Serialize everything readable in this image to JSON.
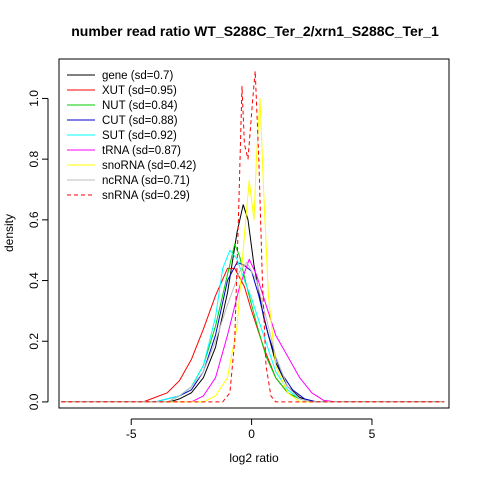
{
  "chart_data": {
    "type": "line",
    "title": "number read ratio WT_S288C_Ter_2/xrn1_S288C_Ter_1",
    "xlabel": "log2 ratio",
    "ylabel": "density",
    "xlim": [
      -8,
      8.2
    ],
    "ylim": [
      -0.02,
      1.13
    ],
    "x_ticks": [
      -5,
      0,
      5
    ],
    "x_tick_labels": [
      "-5",
      "0",
      "5"
    ],
    "y_ticks": [
      0.0,
      0.2,
      0.4,
      0.6,
      0.8,
      1.0
    ],
    "y_tick_labels": [
      "0.0",
      "0.2",
      "0.4",
      "0.6",
      "0.8",
      "1.0"
    ],
    "grid": false,
    "legend_position": "top-left",
    "series": [
      {
        "name": "gene (sd=0.7)",
        "color": "#000000",
        "dash": false,
        "points": [
          [
            -7.9,
            0
          ],
          [
            -3.4,
            0
          ],
          [
            -3.0,
            0.01
          ],
          [
            -2.5,
            0.03
          ],
          [
            -2.0,
            0.08
          ],
          [
            -1.5,
            0.18
          ],
          [
            -1.0,
            0.36
          ],
          [
            -0.6,
            0.56
          ],
          [
            -0.35,
            0.65
          ],
          [
            -0.15,
            0.6
          ],
          [
            0.1,
            0.45
          ],
          [
            0.5,
            0.28
          ],
          [
            1.0,
            0.13
          ],
          [
            1.5,
            0.05
          ],
          [
            2.0,
            0.015
          ],
          [
            2.5,
            0
          ],
          [
            8.0,
            0
          ]
        ]
      },
      {
        "name": "XUT (sd=0.95)",
        "color": "#ff0000",
        "dash": false,
        "points": [
          [
            -7.9,
            0
          ],
          [
            -4.5,
            0
          ],
          [
            -3.5,
            0.03
          ],
          [
            -3.0,
            0.07
          ],
          [
            -2.5,
            0.14
          ],
          [
            -2.0,
            0.24
          ],
          [
            -1.5,
            0.35
          ],
          [
            -1.0,
            0.44
          ],
          [
            -0.7,
            0.44
          ],
          [
            -0.3,
            0.38
          ],
          [
            0.0,
            0.3
          ],
          [
            0.5,
            0.18
          ],
          [
            1.0,
            0.08
          ],
          [
            1.5,
            0.03
          ],
          [
            2.0,
            0.01
          ],
          [
            2.5,
            0
          ],
          [
            8.0,
            0
          ]
        ]
      },
      {
        "name": "NUT (sd=0.84)",
        "color": "#00cc00",
        "dash": false,
        "points": [
          [
            -7.9,
            0
          ],
          [
            -3.5,
            0
          ],
          [
            -3.0,
            0.02
          ],
          [
            -2.5,
            0.05
          ],
          [
            -2.0,
            0.12
          ],
          [
            -1.5,
            0.25
          ],
          [
            -1.0,
            0.42
          ],
          [
            -0.7,
            0.52
          ],
          [
            -0.5,
            0.48
          ],
          [
            -0.2,
            0.38
          ],
          [
            0.2,
            0.26
          ],
          [
            0.6,
            0.15
          ],
          [
            1.0,
            0.08
          ],
          [
            1.5,
            0.03
          ],
          [
            2.0,
            0.01
          ],
          [
            2.5,
            0
          ],
          [
            8.0,
            0
          ]
        ]
      },
      {
        "name": "CUT (sd=0.88)",
        "color": "#0000cc",
        "dash": false,
        "points": [
          [
            -7.9,
            0
          ],
          [
            -4.0,
            0
          ],
          [
            -3.0,
            0.02
          ],
          [
            -2.5,
            0.04
          ],
          [
            -2.0,
            0.1
          ],
          [
            -1.5,
            0.22
          ],
          [
            -1.0,
            0.4
          ],
          [
            -0.6,
            0.46
          ],
          [
            -0.3,
            0.45
          ],
          [
            0.0,
            0.43
          ],
          [
            0.3,
            0.35
          ],
          [
            0.7,
            0.22
          ],
          [
            1.2,
            0.1
          ],
          [
            1.7,
            0.04
          ],
          [
            2.2,
            0.01
          ],
          [
            2.7,
            0
          ],
          [
            8.0,
            0
          ]
        ]
      },
      {
        "name": "SUT (sd=0.92)",
        "color": "#00ffff",
        "dash": false,
        "points": [
          [
            -7.9,
            0
          ],
          [
            -4.0,
            0
          ],
          [
            -3.0,
            0.02
          ],
          [
            -2.5,
            0.05
          ],
          [
            -2.0,
            0.12
          ],
          [
            -1.5,
            0.28
          ],
          [
            -1.2,
            0.44
          ],
          [
            -0.9,
            0.5
          ],
          [
            -0.6,
            0.47
          ],
          [
            -0.3,
            0.4
          ],
          [
            0.0,
            0.34
          ],
          [
            0.5,
            0.22
          ],
          [
            1.0,
            0.1
          ],
          [
            1.5,
            0.04
          ],
          [
            2.0,
            0.01
          ],
          [
            2.5,
            0
          ],
          [
            8.0,
            0
          ]
        ]
      },
      {
        "name": "tRNA (sd=0.87)",
        "color": "#ff00ff",
        "dash": false,
        "points": [
          [
            -7.9,
            0
          ],
          [
            -2.5,
            0
          ],
          [
            -2.0,
            0.02
          ],
          [
            -1.5,
            0.08
          ],
          [
            -1.0,
            0.22
          ],
          [
            -0.5,
            0.38
          ],
          [
            -0.1,
            0.47
          ],
          [
            0.2,
            0.42
          ],
          [
            0.6,
            0.32
          ],
          [
            1.0,
            0.22
          ],
          [
            1.5,
            0.15
          ],
          [
            2.0,
            0.08
          ],
          [
            2.5,
            0.03
          ],
          [
            3.0,
            0.005
          ],
          [
            3.5,
            0
          ],
          [
            8.0,
            0
          ]
        ]
      },
      {
        "name": "snoRNA (sd=0.42)",
        "color": "#ffff00",
        "dash": false,
        "points": [
          [
            -7.9,
            0
          ],
          [
            -2.0,
            0
          ],
          [
            -1.5,
            0.02
          ],
          [
            -1.0,
            0.08
          ],
          [
            -0.6,
            0.25
          ],
          [
            -0.3,
            0.55
          ],
          [
            -0.1,
            0.73
          ],
          [
            0.1,
            0.6
          ],
          [
            0.2,
            0.8
          ],
          [
            0.35,
            1.0
          ],
          [
            0.5,
            0.7
          ],
          [
            0.7,
            0.35
          ],
          [
            1.0,
            0.12
          ],
          [
            1.5,
            0.03
          ],
          [
            2.0,
            0
          ],
          [
            8.0,
            0
          ]
        ]
      },
      {
        "name": "ncRNA (sd=0.71)",
        "color": "#bebebe",
        "dash": false,
        "points": [
          [
            -7.9,
            0
          ],
          [
            -3.5,
            0
          ],
          [
            -3.0,
            0.02
          ],
          [
            -2.5,
            0.05
          ],
          [
            -2.0,
            0.1
          ],
          [
            -1.5,
            0.2
          ],
          [
            -1.0,
            0.32
          ],
          [
            -0.5,
            0.43
          ],
          [
            -0.2,
            0.46
          ],
          [
            0.2,
            0.4
          ],
          [
            0.6,
            0.28
          ],
          [
            1.0,
            0.15
          ],
          [
            1.5,
            0.05
          ],
          [
            2.0,
            0.01
          ],
          [
            2.5,
            0
          ],
          [
            8.0,
            0
          ]
        ]
      },
      {
        "name": "snRNA (sd=0.29)",
        "color": "#ff0000",
        "dash": true,
        "points": [
          [
            -7.9,
            0
          ],
          [
            -1.2,
            0
          ],
          [
            -0.9,
            0.03
          ],
          [
            -0.7,
            0.2
          ],
          [
            -0.55,
            0.6
          ],
          [
            -0.4,
            1.04
          ],
          [
            -0.3,
            0.85
          ],
          [
            -0.15,
            0.8
          ],
          [
            0.05,
            1.0
          ],
          [
            0.15,
            1.09
          ],
          [
            0.3,
            0.8
          ],
          [
            0.45,
            0.4
          ],
          [
            0.6,
            0.12
          ],
          [
            0.8,
            0.02
          ],
          [
            1.0,
            0
          ],
          [
            8.0,
            0
          ]
        ]
      }
    ]
  }
}
